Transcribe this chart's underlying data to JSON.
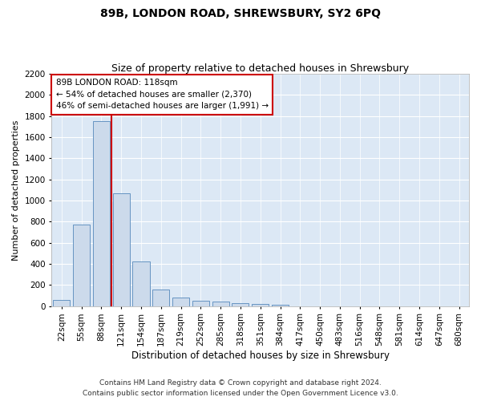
{
  "title": "89B, LONDON ROAD, SHREWSBURY, SY2 6PQ",
  "subtitle": "Size of property relative to detached houses in Shrewsbury",
  "xlabel": "Distribution of detached houses by size in Shrewsbury",
  "ylabel": "Number of detached properties",
  "bar_labels": [
    "22sqm",
    "55sqm",
    "88sqm",
    "121sqm",
    "154sqm",
    "187sqm",
    "219sqm",
    "252sqm",
    "285sqm",
    "318sqm",
    "351sqm",
    "384sqm",
    "417sqm",
    "450sqm",
    "483sqm",
    "516sqm",
    "548sqm",
    "581sqm",
    "614sqm",
    "647sqm",
    "680sqm"
  ],
  "bar_values": [
    55,
    770,
    1750,
    1065,
    420,
    155,
    80,
    50,
    40,
    30,
    20,
    15,
    0,
    0,
    0,
    0,
    0,
    0,
    0,
    0,
    0
  ],
  "bar_color": "#ccdaeb",
  "bar_edge_color": "#5588bb",
  "ylim": [
    0,
    2200
  ],
  "yticks": [
    0,
    200,
    400,
    600,
    800,
    1000,
    1200,
    1400,
    1600,
    1800,
    2000,
    2200
  ],
  "property_line_color": "#cc0000",
  "annotation_text": "89B LONDON ROAD: 118sqm\n← 54% of detached houses are smaller (2,370)\n46% of semi-detached houses are larger (1,991) →",
  "annotation_box_color": "#ffffff",
  "annotation_box_edge": "#cc0000",
  "footer_line1": "Contains HM Land Registry data © Crown copyright and database right 2024.",
  "footer_line2": "Contains public sector information licensed under the Open Government Licence v3.0.",
  "fig_bg_color": "#ffffff",
  "plot_bg_color": "#dce8f5",
  "grid_color": "#ffffff",
  "title_fontsize": 10,
  "subtitle_fontsize": 9,
  "xlabel_fontsize": 8.5,
  "ylabel_fontsize": 8,
  "tick_fontsize": 7.5,
  "annotation_fontsize": 7.5,
  "footer_fontsize": 6.5
}
